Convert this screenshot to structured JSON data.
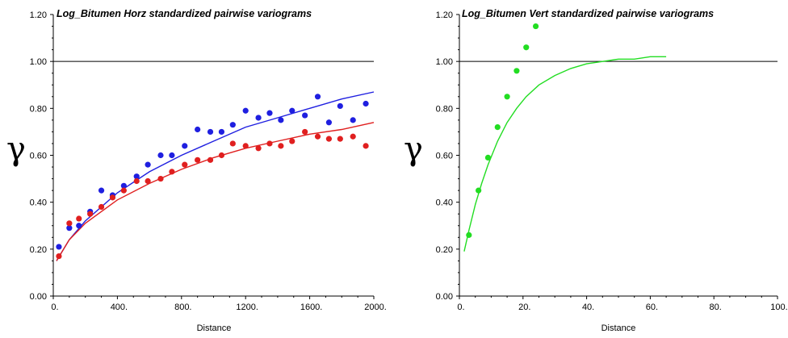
{
  "chart_data": [
    {
      "type": "scatter",
      "title": "Log_Bitumen Horz standardized pairwise variograms",
      "xlabel": "Distance",
      "ylabel": "γ",
      "xlim": [
        0,
        2000
      ],
      "ylim": [
        0,
        1.2
      ],
      "x_ticks": [
        "0.",
        "400.",
        "800.",
        "1200.",
        "1600.",
        "2000."
      ],
      "y_ticks": [
        "0.00",
        "0.20",
        "0.40",
        "0.60",
        "0.80",
        "1.00",
        "1.20"
      ],
      "y_tick_values": [
        0,
        0.2,
        0.4,
        0.6,
        0.8,
        1.0,
        1.2
      ],
      "x_tick_values": [
        0,
        400,
        800,
        1200,
        1600,
        2000
      ],
      "sill": 1.0,
      "series": [
        {
          "color": "#1f1fe0",
          "x": [
            35,
            100,
            160,
            230,
            300,
            370,
            440,
            520,
            590,
            670,
            740,
            820,
            900,
            980,
            1050,
            1120,
            1200,
            1280,
            1350,
            1420,
            1490,
            1570,
            1650,
            1720,
            1790,
            1870,
            1950
          ],
          "y": [
            0.21,
            0.29,
            0.3,
            0.36,
            0.45,
            0.43,
            0.47,
            0.51,
            0.56,
            0.6,
            0.6,
            0.64,
            0.71,
            0.7,
            0.7,
            0.73,
            0.79,
            0.76,
            0.78,
            0.75,
            0.79,
            0.77,
            0.85,
            0.74,
            0.81,
            0.75,
            0.82
          ]
        },
        {
          "color": "#e01f1f",
          "x": [
            35,
            100,
            160,
            230,
            300,
            370,
            440,
            520,
            590,
            670,
            740,
            820,
            900,
            980,
            1050,
            1120,
            1200,
            1280,
            1350,
            1420,
            1490,
            1570,
            1650,
            1720,
            1790,
            1870,
            1950
          ],
          "y": [
            0.17,
            0.31,
            0.33,
            0.35,
            0.38,
            0.42,
            0.45,
            0.49,
            0.49,
            0.5,
            0.53,
            0.56,
            0.58,
            0.58,
            0.6,
            0.65,
            0.64,
            0.63,
            0.65,
            0.64,
            0.66,
            0.7,
            0.68,
            0.67,
            0.67,
            0.68,
            0.64
          ]
        }
      ],
      "models": [
        {
          "color": "#1f1fe0",
          "x": [
            20,
            100,
            200,
            300,
            400,
            600,
            800,
            1000,
            1200,
            1400,
            1600,
            1800,
            2000
          ],
          "y": [
            0.15,
            0.24,
            0.32,
            0.38,
            0.44,
            0.53,
            0.6,
            0.66,
            0.72,
            0.76,
            0.8,
            0.84,
            0.87
          ]
        },
        {
          "color": "#e01f1f",
          "x": [
            20,
            100,
            200,
            300,
            400,
            600,
            800,
            1000,
            1200,
            1400,
            1600,
            1800,
            2000
          ],
          "y": [
            0.15,
            0.24,
            0.31,
            0.36,
            0.41,
            0.48,
            0.54,
            0.59,
            0.63,
            0.66,
            0.69,
            0.71,
            0.74
          ]
        }
      ]
    },
    {
      "type": "scatter",
      "title": "Log_Bitumen Vert standardized pairwise variograms",
      "xlabel": "Distance",
      "ylabel": "γ",
      "xlim": [
        0,
        100
      ],
      "ylim": [
        0,
        1.2
      ],
      "x_ticks": [
        "0.",
        "20.",
        "40.",
        "60.",
        "80.",
        "100."
      ],
      "y_ticks": [
        "0.00",
        "0.20",
        "0.40",
        "0.60",
        "0.80",
        "1.00",
        "1.20"
      ],
      "y_tick_values": [
        0,
        0.2,
        0.4,
        0.6,
        0.8,
        1.0,
        1.2
      ],
      "x_tick_values": [
        0,
        20,
        40,
        60,
        80,
        100
      ],
      "sill": 1.0,
      "series": [
        {
          "color": "#22dd22",
          "x": [
            3,
            6,
            9,
            12,
            15,
            18,
            21,
            24
          ],
          "y": [
            0.26,
            0.45,
            0.59,
            0.72,
            0.85,
            0.96,
            1.06,
            1.15
          ]
        }
      ],
      "models": [
        {
          "color": "#22dd22",
          "x": [
            1.5,
            3,
            5,
            7,
            9,
            12,
            15,
            18,
            21,
            25,
            30,
            35,
            40,
            45,
            50,
            55,
            60,
            65
          ],
          "y": [
            0.19,
            0.28,
            0.39,
            0.48,
            0.56,
            0.66,
            0.74,
            0.8,
            0.85,
            0.9,
            0.94,
            0.97,
            0.99,
            1.0,
            1.01,
            1.01,
            1.02,
            1.02
          ]
        }
      ]
    }
  ]
}
